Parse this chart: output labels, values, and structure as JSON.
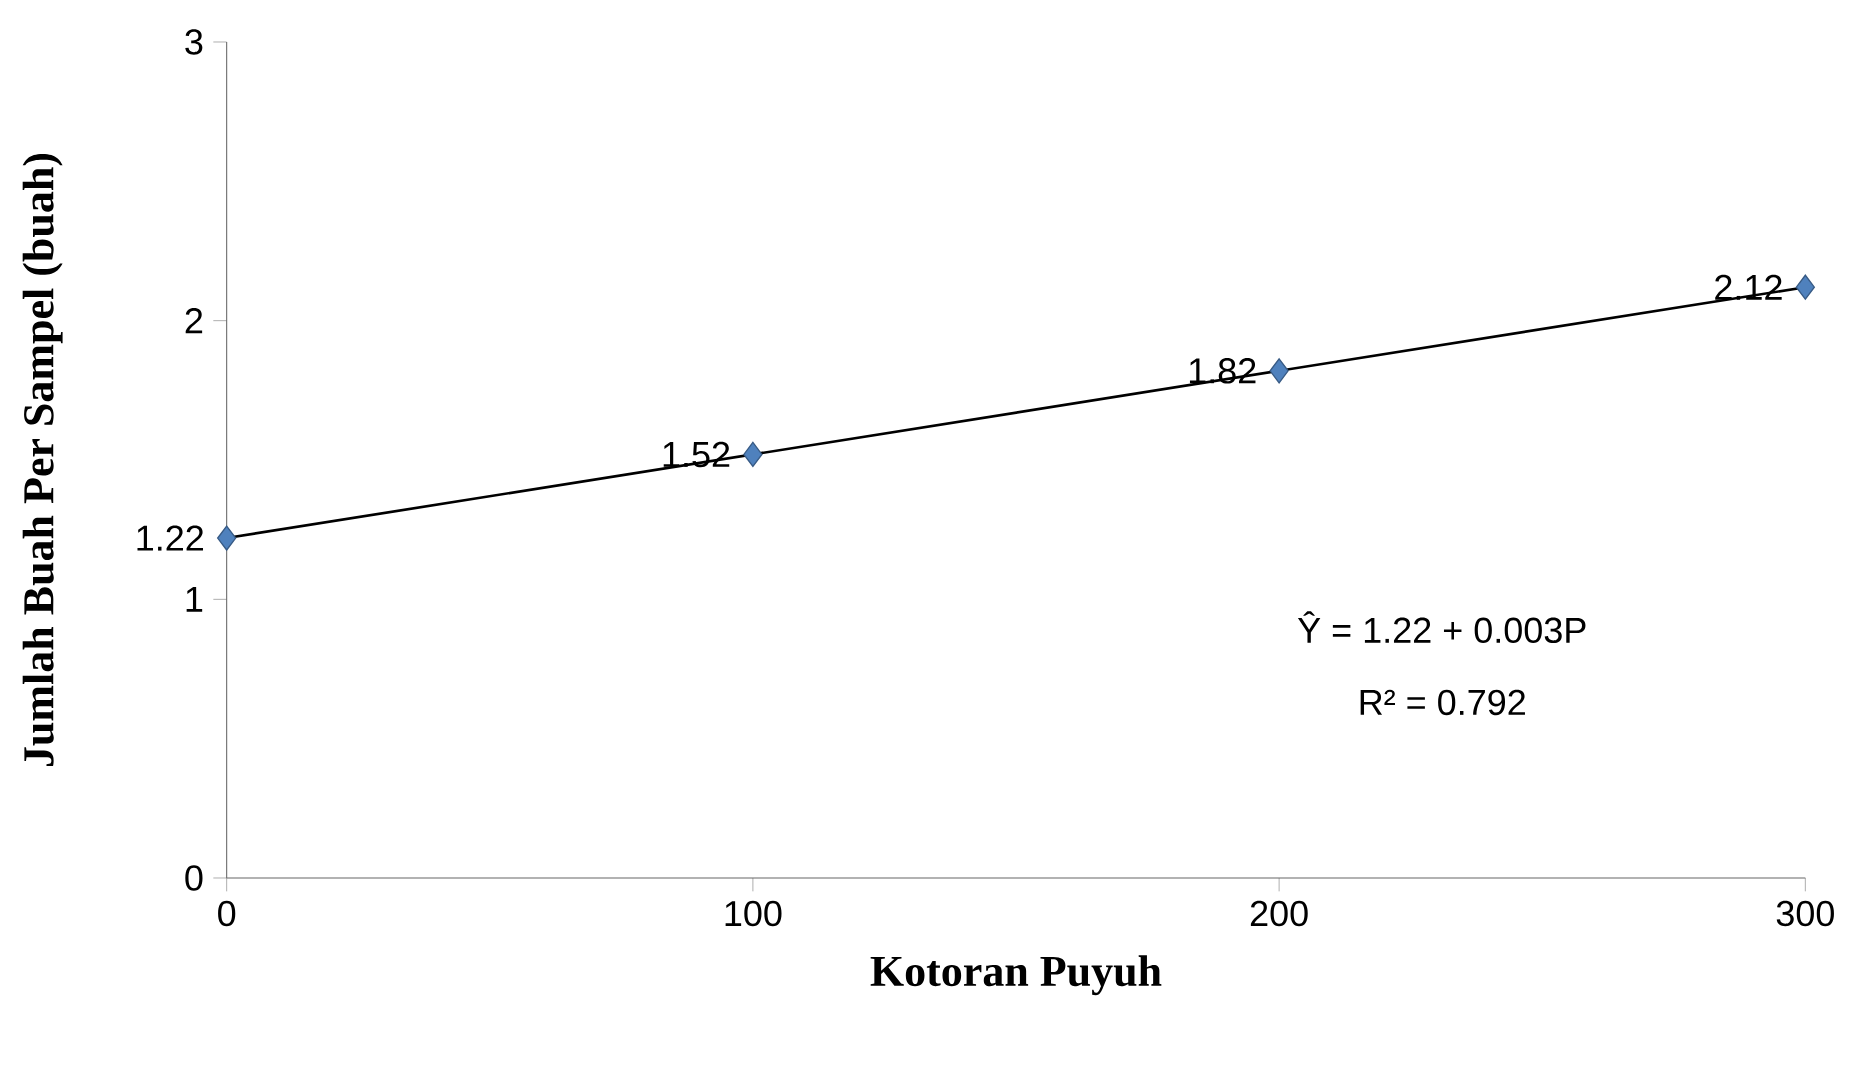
{
  "chart_data": {
    "type": "scatter",
    "xlabel": "Kotoran Puyuh",
    "ylabel": "Jumlah Buah Per Sampel (buah)",
    "xlim": [
      0,
      300
    ],
    "xticks": [
      0,
      100,
      200,
      300
    ],
    "ylim": [
      0,
      3
    ],
    "yticks": [
      0,
      1,
      2,
      3
    ],
    "series": [
      {
        "marker": "diamond",
        "color": "#4f81bd",
        "x": [
          0,
          100,
          200,
          300
        ],
        "values": [
          1.22,
          1.52,
          1.82,
          2.12
        ],
        "value_labels": [
          "1.22",
          "1.52",
          "1.82",
          "2.12"
        ]
      },
      {
        "type": "line",
        "marker": "none",
        "color": "#000000",
        "line_style": "solid",
        "x": [
          0,
          300
        ],
        "values": [
          1.22,
          2.12
        ]
      }
    ],
    "annotations": [
      "Ŷ = 1.22 + 0.003P",
      "R² = 0.792"
    ]
  }
}
